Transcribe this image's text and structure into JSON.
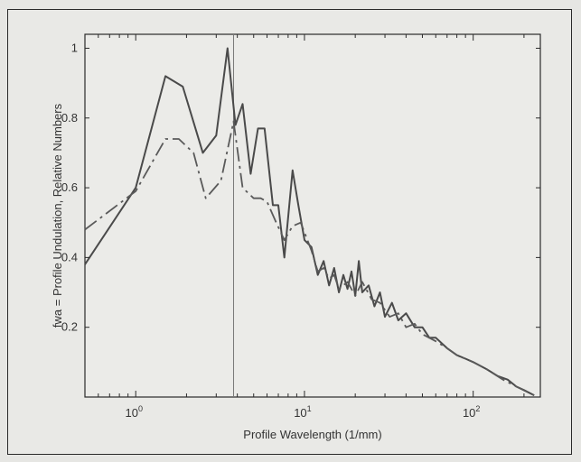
{
  "chart_data": {
    "type": "line",
    "title": "",
    "xlabel": "Profile Wavelength (1/mm)",
    "ylabel": "fwa = Profile Undulation, Relative Numbers",
    "x_scale": "log",
    "xlim": [
      0.5,
      250
    ],
    "ylim": [
      0,
      1.04
    ],
    "grid": false,
    "legend": "none",
    "x_ticks": [
      {
        "value": 1,
        "base": "10",
        "exp": "0"
      },
      {
        "value": 10,
        "base": "10",
        "exp": "1"
      },
      {
        "value": 100,
        "base": "10",
        "exp": "2"
      }
    ],
    "y_ticks": [
      {
        "value": 0.2,
        "label": "0.2"
      },
      {
        "value": 0.4,
        "label": "0.4"
      },
      {
        "value": 0.6,
        "label": "0.6"
      },
      {
        "value": 0.8,
        "label": "0.8"
      },
      {
        "value": 1.0,
        "label": "1"
      }
    ],
    "reference_line_x": 3.8,
    "series": [
      {
        "style": "solid",
        "color": "#4a4a4a",
        "x": [
          0.5,
          1.0,
          1.5,
          1.9,
          2.5,
          3.0,
          3.5,
          3.9,
          4.3,
          4.8,
          5.3,
          5.8,
          6.5,
          7.0,
          7.6,
          8.5,
          9.2,
          10,
          11,
          12,
          13,
          14,
          15,
          16,
          17,
          18,
          19,
          20,
          21,
          22,
          24,
          26,
          28,
          30,
          33,
          36,
          40,
          45,
          50,
          55,
          60,
          70,
          80,
          90,
          100,
          120,
          140,
          160,
          180,
          200,
          230
        ],
        "y": [
          0.38,
          0.6,
          0.92,
          0.89,
          0.7,
          0.75,
          1.0,
          0.78,
          0.84,
          0.64,
          0.77,
          0.77,
          0.55,
          0.55,
          0.4,
          0.65,
          0.55,
          0.45,
          0.43,
          0.35,
          0.39,
          0.32,
          0.37,
          0.3,
          0.35,
          0.31,
          0.36,
          0.29,
          0.39,
          0.3,
          0.32,
          0.26,
          0.3,
          0.23,
          0.27,
          0.22,
          0.24,
          0.2,
          0.2,
          0.17,
          0.17,
          0.14,
          0.12,
          0.11,
          0.1,
          0.08,
          0.06,
          0.05,
          0.03,
          0.02,
          0.005
        ]
      },
      {
        "style": "dash-dot",
        "color": "#5a5a5a",
        "x": [
          0.5,
          1.0,
          1.5,
          1.8,
          2.2,
          2.6,
          3.2,
          3.8,
          4.3,
          5.0,
          5.5,
          6.0,
          6.8,
          7.6,
          8.5,
          9.5,
          11,
          12,
          13,
          14,
          15,
          16,
          18,
          20,
          22,
          25,
          28,
          32,
          36,
          40,
          45,
          50,
          60,
          70,
          80,
          100,
          120,
          150,
          180,
          230
        ],
        "y": [
          0.48,
          0.59,
          0.74,
          0.74,
          0.7,
          0.57,
          0.62,
          0.79,
          0.6,
          0.57,
          0.57,
          0.56,
          0.5,
          0.45,
          0.49,
          0.5,
          0.42,
          0.36,
          0.37,
          0.34,
          0.35,
          0.31,
          0.33,
          0.29,
          0.33,
          0.28,
          0.27,
          0.23,
          0.24,
          0.2,
          0.21,
          0.18,
          0.16,
          0.14,
          0.12,
          0.1,
          0.08,
          0.05,
          0.03,
          0.005
        ]
      }
    ]
  }
}
